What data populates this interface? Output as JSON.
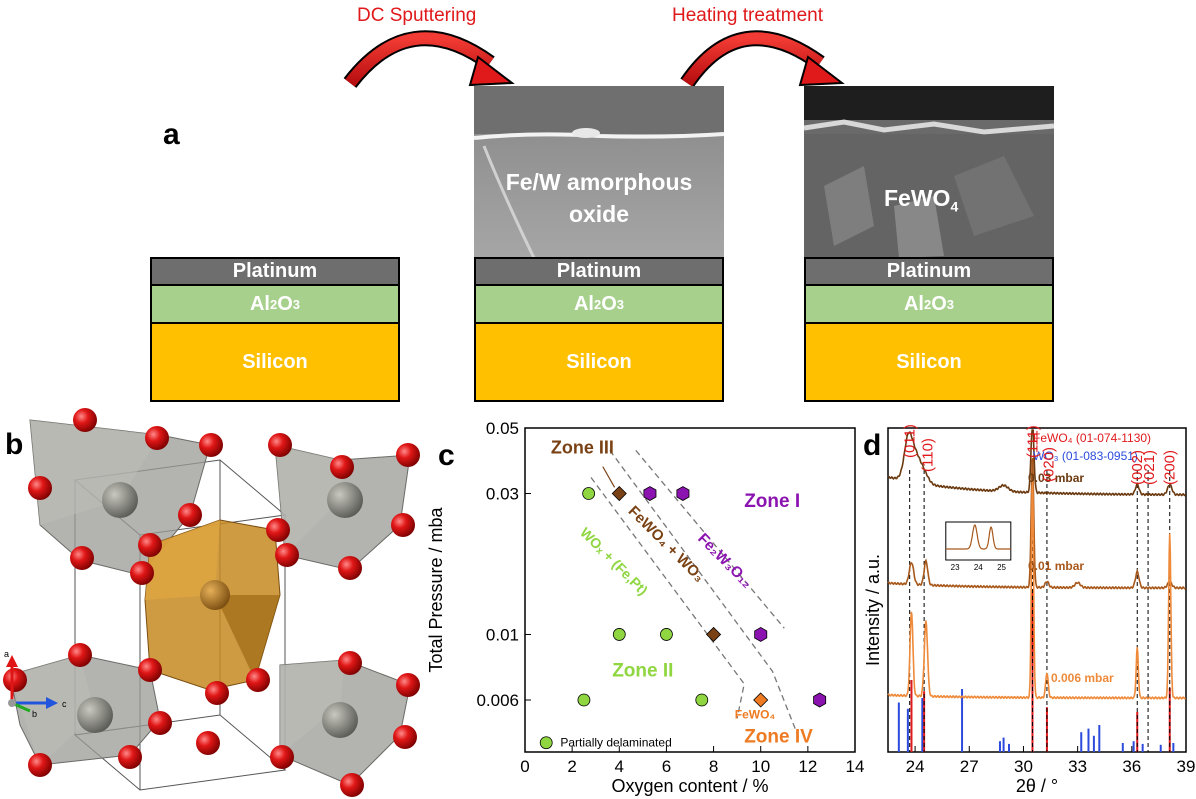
{
  "panel_a": {
    "letter": "a",
    "step1": "DC Sputtering",
    "step2": "Heating treatment",
    "stack": {
      "platinum": "Platinum",
      "al2o3_base": "Al",
      "al2o3_sub1": "2",
      "al2o3_mid": "O",
      "al2o3_sub2": "3",
      "silicon": "Silicon"
    },
    "sem1_line1": "Fe/W amorphous",
    "sem1_line2": "oxide",
    "sem2_base": "FeWO",
    "sem2_sub": "4"
  },
  "panel_b": {
    "letter": "b",
    "axis_a": "a",
    "axis_b": "b",
    "axis_c": "c"
  },
  "panel_c": {
    "letter": "c",
    "zones": {
      "zone1": "Zone I",
      "zone2": "Zone II",
      "zone3": "Zone III",
      "zone4": "Zone IV"
    },
    "phase_labels": {
      "fewo4_wo3": "FeWO₄ + WO₃",
      "fe2w3o12": "Fe₂W₃O₁₂",
      "wox_fept": "WOₓ + (Fe,Pt)",
      "fewo4": "FeWO₄"
    },
    "legend_text": "Partially delaminated",
    "colors": {
      "zone1": "#8b13b0",
      "zone2": "#8fd641",
      "zone3": "#7a4214",
      "zone4": "#ee7a21"
    }
  },
  "panel_d": {
    "letter": "d",
    "ref1_label": "FeWO₄ (01-074-1130)",
    "ref2_label": "WO₃ (01-083-0951)",
    "pressure_labels": [
      "0.03 mbar",
      "0.01 mbar",
      "0.006 mbar"
    ],
    "miller": [
      "(011)",
      "(110)",
      "(111)",
      "(020)",
      "(002)",
      "(021)",
      "(200)"
    ],
    "inset_ticks": [
      "23",
      "24",
      "25"
    ]
  },
  "chart_data": [
    {
      "type": "scatter",
      "xlabel": "Oxygen content / %",
      "ylabel": "Total Pressure / mba",
      "xlim": [
        0,
        14
      ],
      "ylim": [
        0.004,
        0.05
      ],
      "log_y": true,
      "x_ticks": [
        "0",
        "2",
        "4",
        "6",
        "8",
        "10",
        "12",
        "14"
      ],
      "y_ticks": [
        "0.006",
        "0.01",
        "0.03",
        "0.05"
      ],
      "series": [
        {
          "name": "Zone II",
          "marker": "circle",
          "color": "#8fd641",
          "points": [
            [
              2.7,
              0.03
            ],
            [
              4,
              0.01
            ],
            [
              6,
              0.01
            ],
            [
              2.5,
              0.006
            ],
            [
              7.5,
              0.006
            ]
          ]
        },
        {
          "name": "Zone III",
          "marker": "diamond",
          "color": "#7a4214",
          "points": [
            [
              4,
              0.03
            ],
            [
              8,
              0.01
            ]
          ]
        },
        {
          "name": "Zone I",
          "marker": "hexagon",
          "color": "#8b13b0",
          "points": [
            [
              5.3,
              0.03
            ],
            [
              6.7,
              0.03
            ],
            [
              10,
              0.01
            ],
            [
              12.5,
              0.006
            ]
          ]
        },
        {
          "name": "Zone IV",
          "marker": "diamond",
          "color": "#ee7a21",
          "points": [
            [
              10,
              0.006
            ]
          ]
        }
      ]
    },
    {
      "type": "line",
      "xlabel": "2θ / °",
      "ylabel": "Intensity / a.u.",
      "xlim": [
        22.5,
        39
      ],
      "x_ticks": [
        "24",
        "27",
        "30",
        "33",
        "36",
        "39"
      ],
      "series": [
        {
          "name": "0.03 mbar",
          "color": "#6b3a10"
        },
        {
          "name": "0.01 mbar",
          "color": "#a8581a"
        },
        {
          "name": "0.006 mbar",
          "color": "#ee8a3a"
        }
      ],
      "reference_lines": [
        23.7,
        24.5,
        30.5,
        31.3,
        36.3,
        36.9,
        38.1
      ],
      "fewo4_ref_peaks": [
        [
          23.8,
          45
        ],
        [
          24.5,
          38
        ],
        [
          30.5,
          100
        ],
        [
          31.3,
          28
        ],
        [
          36.3,
          25
        ],
        [
          38.1,
          40
        ]
      ],
      "wo3_ref_peaks": [
        [
          23.1,
          55
        ],
        [
          23.6,
          48
        ],
        [
          24.4,
          60
        ],
        [
          26.6,
          70
        ],
        [
          28.7,
          12
        ],
        [
          28.9,
          16
        ],
        [
          29.2,
          9
        ],
        [
          33.2,
          22
        ],
        [
          33.6,
          26
        ],
        [
          33.9,
          18
        ],
        [
          34.2,
          30
        ],
        [
          35.5,
          10
        ],
        [
          36.1,
          12
        ],
        [
          36.6,
          9
        ],
        [
          37.6,
          8
        ],
        [
          38.3,
          10
        ]
      ]
    }
  ]
}
